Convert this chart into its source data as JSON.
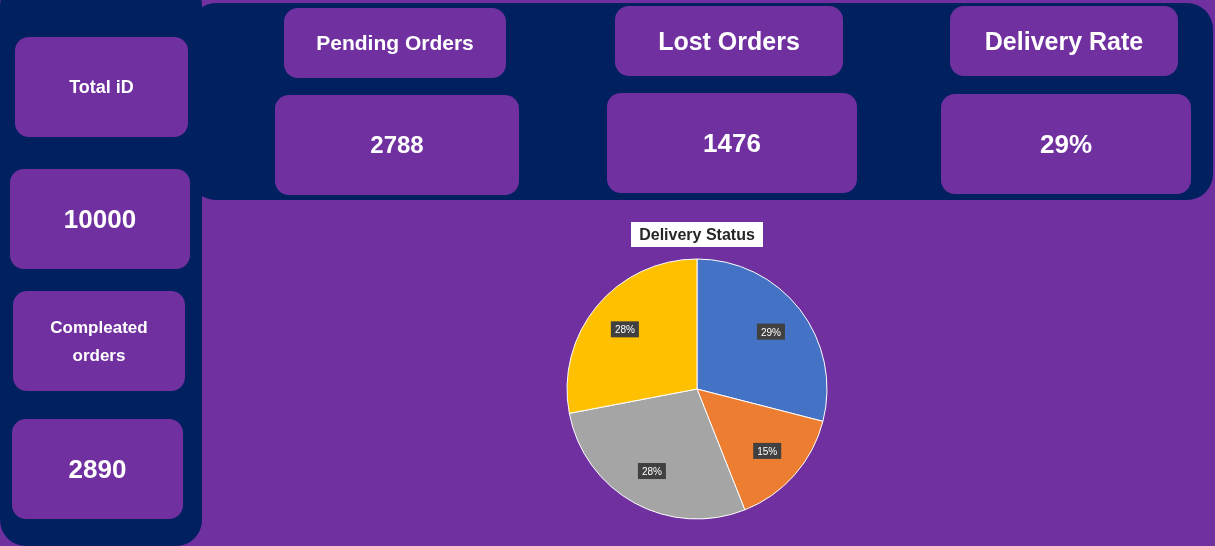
{
  "chart_data": [
    {
      "type": "other",
      "title": "Total iD",
      "annotations": [
        "10000"
      ]
    },
    {
      "type": "other",
      "title": "Pending Orders",
      "annotations": [
        "2788"
      ]
    },
    {
      "type": "other",
      "title": "Lost Orders",
      "annotations": [
        "1476"
      ]
    },
    {
      "type": "other",
      "title": "Delivery Rate",
      "annotations": [
        "29%"
      ]
    },
    {
      "type": "other",
      "title": "Compleated orders",
      "annotations": [
        "2890"
      ]
    },
    {
      "type": "pie",
      "title": "Delivery Status",
      "categories": [
        null,
        null,
        null,
        null
      ],
      "values": [
        29,
        15,
        28,
        28
      ],
      "colors": [
        "#4472c4",
        "#ed7d31",
        "#a5a5a5",
        "#ffc000"
      ],
      "value_labels": [
        "29%",
        "15%",
        "28%",
        "28%"
      ]
    }
  ]
}
